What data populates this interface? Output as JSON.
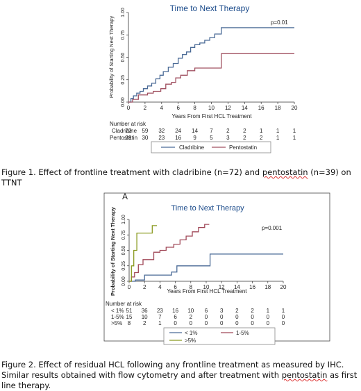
{
  "figure1": {
    "chart_data": {
      "type": "line",
      "step": true,
      "title": "Time to Next Therapy",
      "xlabel": "Years From First HCL Treatment",
      "ylabel": "Probability of Starting Next Therapy",
      "xlim": [
        0,
        20
      ],
      "ylim": [
        0,
        1
      ],
      "x_ticks": [
        "0",
        "2",
        "4",
        "6",
        "8",
        "10",
        "12",
        "14",
        "16",
        "18",
        "20"
      ],
      "y_ticks": [
        "0.00",
        "0.25",
        "0.50",
        "0.75",
        "1.00"
      ],
      "annotation": "p=0.01",
      "legend_position": "bottom",
      "series": [
        {
          "name": "Cladribine",
          "color": "#4a6a96",
          "x": [
            0,
            0.3,
            0.6,
            1.0,
            1.4,
            1.8,
            2.3,
            2.8,
            3.3,
            3.8,
            4.2,
            4.8,
            5.4,
            6.0,
            6.5,
            7.0,
            7.5,
            8.0,
            8.6,
            9.2,
            9.8,
            10.4,
            11.2,
            20
          ],
          "y": [
            0,
            0.04,
            0.07,
            0.1,
            0.12,
            0.15,
            0.18,
            0.21,
            0.26,
            0.3,
            0.34,
            0.39,
            0.43,
            0.49,
            0.53,
            0.56,
            0.61,
            0.64,
            0.66,
            0.69,
            0.72,
            0.76,
            0.83,
            0.83
          ]
        },
        {
          "name": "Pentostatin",
          "color": "#a05060",
          "x": [
            0,
            0.5,
            1.2,
            2.3,
            3.0,
            3.9,
            4.5,
            5.2,
            5.7,
            6.3,
            7.1,
            8.0,
            9.0,
            11.2,
            20
          ],
          "y": [
            0,
            0.03,
            0.08,
            0.1,
            0.12,
            0.15,
            0.2,
            0.22,
            0.27,
            0.3,
            0.35,
            0.38,
            0.38,
            0.54,
            0.54
          ]
        }
      ],
      "risk_table": {
        "label": "Number at risk",
        "rows": [
          {
            "name": "Cladribine",
            "values": [
              "72",
              "59",
              "32",
              "24",
              "14",
              "7",
              "2",
              "2",
              "1",
              "1",
              "1"
            ]
          },
          {
            "name": "Pentostatin",
            "values": [
              "39",
              "30",
              "23",
              "16",
              "9",
              "5",
              "3",
              "2",
              "2",
              "1",
              "1"
            ]
          }
        ]
      }
    }
  },
  "figure2": {
    "panel_letter": "A",
    "chart_data": {
      "type": "line",
      "step": true,
      "title": "Time to Next Therapy",
      "xlabel": "Years From First HCL Treatment",
      "ylabel": "Probability of Starting Next Therapy",
      "xlim": [
        0,
        20
      ],
      "ylim": [
        0,
        1
      ],
      "x_ticks": [
        "0",
        "2",
        "4",
        "6",
        "8",
        "10",
        "12",
        "14",
        "16",
        "18",
        "20"
      ],
      "y_ticks": [
        "0.00",
        "0.25",
        "0.50",
        "0.75",
        "1.00"
      ],
      "annotation": "p=0.001",
      "legend_position": "bottom",
      "series": [
        {
          "name": "< 1%",
          "color": "#4a6a96",
          "x": [
            0,
            0.8,
            2.0,
            5.5,
            6.2,
            10.5,
            20
          ],
          "y": [
            0,
            0.02,
            0.1,
            0.15,
            0.25,
            0.44,
            0.44
          ]
        },
        {
          "name": "1-5%",
          "color": "#a04858",
          "x": [
            0,
            0.3,
            0.7,
            1.2,
            1.8,
            3.2,
            4.0,
            4.8,
            5.8,
            6.6,
            7.4,
            8.2,
            9.0,
            9.8,
            10.4
          ],
          "y": [
            0,
            0.07,
            0.14,
            0.27,
            0.35,
            0.47,
            0.5,
            0.55,
            0.6,
            0.67,
            0.73,
            0.8,
            0.87,
            0.92,
            0.92
          ]
        },
        {
          "name": ">5%",
          "color": "#8a9a20",
          "x": [
            0,
            0.3,
            0.6,
            1.0,
            2.0,
            3.0,
            3.6
          ],
          "y": [
            0,
            0.25,
            0.5,
            0.78,
            0.78,
            0.9,
            0.9
          ]
        }
      ],
      "risk_table": {
        "label": "Number at risk",
        "rows": [
          {
            "name": "< 1%",
            "values": [
              "51",
              "36",
              "23",
              "16",
              "10",
              "6",
              "3",
              "2",
              "2",
              "1",
              "1"
            ]
          },
          {
            "name": "1-5%",
            "values": [
              "15",
              "10",
              "7",
              "6",
              "2",
              "0",
              "0",
              "0",
              "0",
              "0",
              "0"
            ]
          },
          {
            "name": ">5%",
            "values": [
              "8",
              "2",
              "1",
              "0",
              "0",
              "0",
              "0",
              "0",
              "0",
              "0",
              "0"
            ]
          }
        ]
      }
    }
  },
  "captions": {
    "fig1_a": "Figure 1. Effect of frontline treatment with cladribine (n=72) and ",
    "fig1_b": "pentostatin",
    "fig1_c": " (n=39) on TTNT",
    "fig2_a": "Figure 2. Effect of residual HCL following any frontline treatment as measured by IHC. Similar results obtained with flow cytometry and after treatment with ",
    "fig2_b": "pentostatin",
    "fig2_c": " as first line therapy."
  }
}
